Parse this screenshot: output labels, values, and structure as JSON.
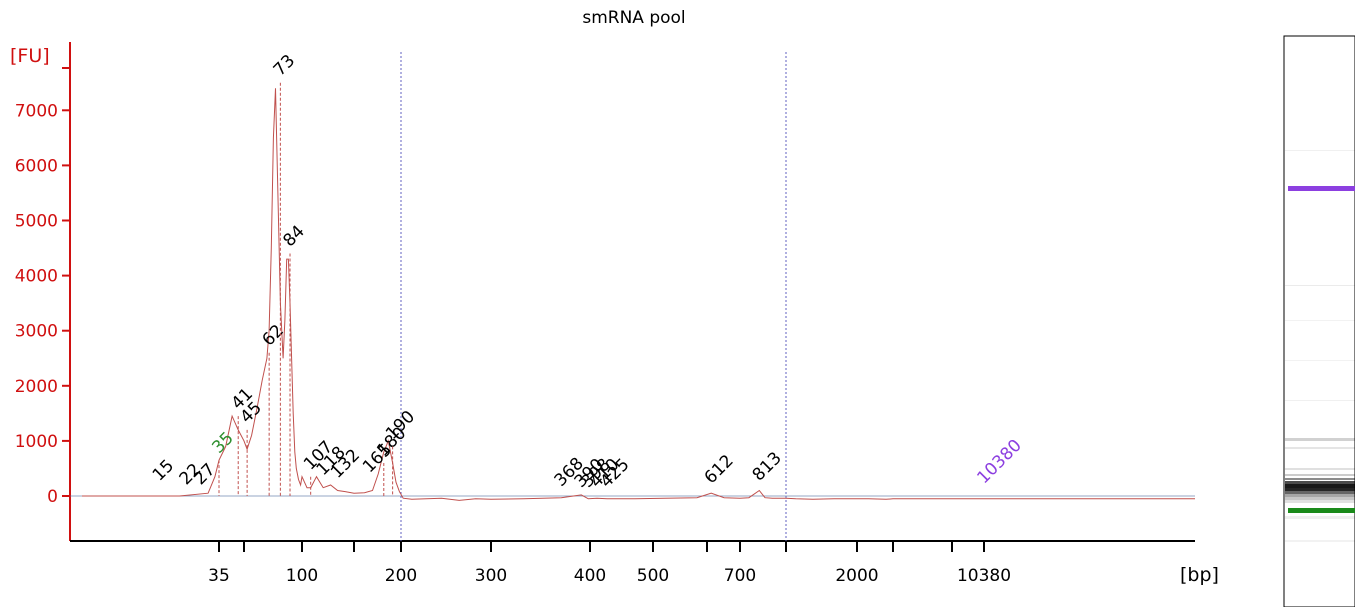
{
  "chart_data": {
    "type": "line",
    "title": "smRNA pool",
    "ylabel": "[FU]",
    "xlabel": "[bp]",
    "ylim": [
      -700,
      8000
    ],
    "yticks": [
      0,
      1000,
      2000,
      3000,
      4000,
      5000,
      6000,
      7000
    ],
    "xticks": [
      {
        "label": "35",
        "pos": 35
      },
      {
        "label": "",
        "pos": 43
      },
      {
        "label": "100",
        "pos": 100
      },
      {
        "label": "",
        "pos": 150
      },
      {
        "label": "200",
        "pos": 200
      },
      {
        "label": "300",
        "pos": 300
      },
      {
        "label": "400",
        "pos": 400
      },
      {
        "label": "500",
        "pos": 500
      },
      {
        "label": "",
        "pos": 600
      },
      {
        "label": "700",
        "pos": 700
      },
      {
        "label": "",
        "pos": 1000
      },
      {
        "label": "2000",
        "pos": 2000
      },
      {
        "label": "",
        "pos": 4000
      },
      {
        "label": "",
        "pos": 7000
      },
      {
        "label": "10380",
        "pos": 10380
      }
    ],
    "series": [
      {
        "color": "#c0504d",
        "x": [
          5,
          20,
          30,
          33,
          35,
          37,
          39,
          41,
          43,
          45,
          48,
          52,
          56,
          60,
          62,
          64,
          66,
          68,
          70,
          73,
          76,
          78,
          80,
          82,
          84,
          86,
          88,
          90,
          92,
          95,
          98,
          100,
          104,
          107,
          112,
          118,
          125,
          132,
          140,
          150,
          160,
          168,
          174,
          180,
          185,
          190,
          194,
          198,
          202,
          210,
          240,
          260,
          280,
          300,
          330,
          368,
          390,
          398,
          410,
          425,
          460,
          520,
          580,
          612,
          650,
          700,
          750,
          813,
          850,
          900,
          1000,
          1100,
          1300,
          1600,
          2500,
          3500,
          4000,
          5000,
          7000,
          10380,
          20000,
          40000
        ],
        "y": [
          0,
          0,
          50,
          350,
          650,
          900,
          1450,
          1200,
          1000,
          850,
          1100,
          1600,
          2100,
          2500,
          3000,
          4500,
          6500,
          7400,
          5800,
          3500,
          2500,
          3200,
          4300,
          4300,
          3500,
          2500,
          1500,
          800,
          500,
          300,
          200,
          350,
          150,
          150,
          350,
          150,
          200,
          100,
          80,
          50,
          60,
          100,
          400,
          800,
          1000,
          600,
          250,
          80,
          -40,
          -60,
          -40,
          -80,
          -50,
          -60,
          -50,
          -30,
          20,
          -50,
          -40,
          -50,
          -50,
          -40,
          -30,
          50,
          -30,
          -40,
          -30,
          100,
          -30,
          -40,
          -40,
          -50,
          -60,
          -50,
          -50,
          -60,
          -50,
          -50,
          -50,
          -50,
          -50,
          -50
        ]
      }
    ],
    "dotted_lines_at": [
      200,
      1000
    ],
    "peak_labels": [
      {
        "label": "15",
        "x": 15,
        "y": 150,
        "color": "#000000"
      },
      {
        "label": "22",
        "x": 22,
        "y": 80,
        "color": "#000000"
      },
      {
        "label": "27",
        "x": 27,
        "y": 80,
        "color": "#000000"
      },
      {
        "label": "35",
        "x": 35,
        "y": 650,
        "color": "#2f8f2f"
      },
      {
        "label": "41",
        "x": 41,
        "y": 1450,
        "color": "#000000"
      },
      {
        "label": "45",
        "x": 45,
        "y": 1200,
        "color": "#000000"
      },
      {
        "label": "62",
        "x": 62,
        "y": 2600,
        "color": "#000000"
      },
      {
        "label": "73",
        "x": 73,
        "y": 7500,
        "color": "#000000"
      },
      {
        "label": "84",
        "x": 84,
        "y": 4400,
        "color": "#000000"
      },
      {
        "label": "107",
        "x": 107,
        "y": 350,
        "color": "#000000"
      },
      {
        "label": "118",
        "x": 118,
        "y": 250,
        "color": "#000000"
      },
      {
        "label": "132",
        "x": 132,
        "y": 200,
        "color": "#000000"
      },
      {
        "label": "165",
        "x": 165,
        "y": 300,
        "color": "#000000"
      },
      {
        "label": "180",
        "x": 180,
        "y": 600,
        "color": "#000000"
      },
      {
        "label": "190",
        "x": 190,
        "y": 900,
        "color": "#000000"
      },
      {
        "label": "368",
        "x": 368,
        "y": 50,
        "color": "#000000"
      },
      {
        "label": "390",
        "x": 390,
        "y": 30,
        "color": "#000000"
      },
      {
        "label": "398",
        "x": 398,
        "y": 30,
        "color": "#000000"
      },
      {
        "label": "410",
        "x": 410,
        "y": 30,
        "color": "#000000"
      },
      {
        "label": "425",
        "x": 425,
        "y": 30,
        "color": "#000000"
      },
      {
        "label": "612",
        "x": 612,
        "y": 100,
        "color": "#000000"
      },
      {
        "label": "813",
        "x": 813,
        "y": 150,
        "color": "#000000"
      },
      {
        "label": "10380",
        "x": 10380,
        "y": 100,
        "color": "#8c3fe0"
      }
    ]
  },
  "gel": {
    "upper_marker_color": "#8c3fe0",
    "lower_marker_color": "#1a8a1a"
  },
  "colors": {
    "axis_y": "#d01010",
    "axis_x": "#000000",
    "trace": "#c0504d",
    "dotted": "#6060c0"
  }
}
